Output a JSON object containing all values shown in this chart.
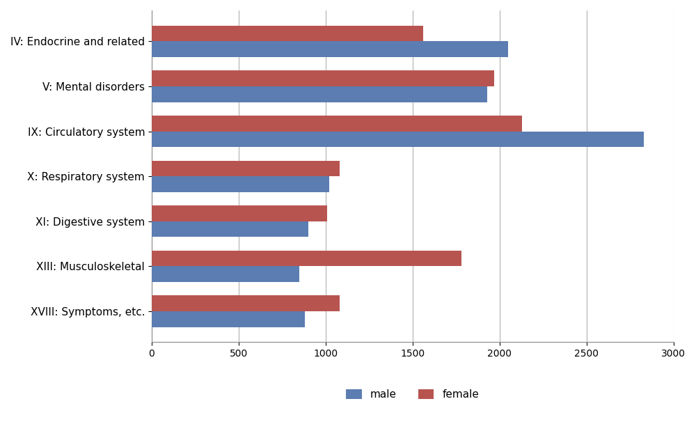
{
  "categories": [
    "IV: Endocrine and related",
    "V: Mental disorders",
    "IX: Circulatory system",
    "X: Respiratory system",
    "XI: Digestive system",
    "XIII: Musculoskeletal",
    "XVIII: Symptoms, etc."
  ],
  "male_values": [
    2050,
    1930,
    2830,
    1020,
    900,
    850,
    880
  ],
  "female_values": [
    1560,
    1970,
    2130,
    1080,
    1010,
    1780,
    1080
  ],
  "male_color": "#5B7DB1",
  "female_color": "#B85450",
  "xlim": [
    0,
    3000
  ],
  "xticks": [
    0,
    500,
    1000,
    1500,
    2000,
    2500,
    3000
  ],
  "bar_height": 0.35,
  "legend_labels": [
    "male",
    "female"
  ],
  "background_color": "#ffffff",
  "grid_color": "#b0b0b0",
  "label_fontsize": 11,
  "tick_fontsize": 10,
  "legend_fontsize": 11
}
